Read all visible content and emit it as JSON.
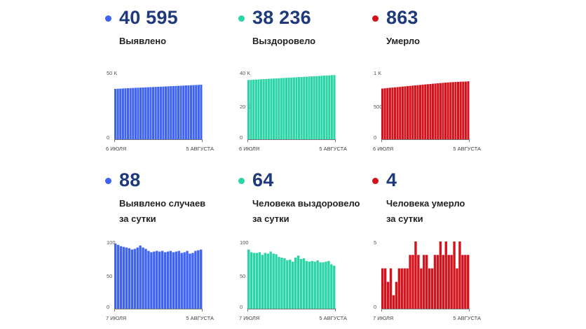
{
  "colors": {
    "blue": "#3f63f2",
    "green": "#2bd4a6",
    "red": "#d4121c",
    "value_text": "#1f3a7a"
  },
  "panels": [
    {
      "value": "40 595",
      "label_lines": [
        "Выявлено"
      ],
      "color": "blue"
    },
    {
      "value": "38 236",
      "label_lines": [
        "Выздоровело"
      ],
      "color": "green"
    },
    {
      "value": "863",
      "label_lines": [
        "Умерло"
      ],
      "color": "red"
    },
    {
      "value": "88",
      "label_lines": [
        "Выявлено случаев",
        "за сутки"
      ],
      "color": "blue"
    },
    {
      "value": "64",
      "label_lines": [
        "Человека выздоровело",
        "за сутки"
      ],
      "color": "green"
    },
    {
      "value": "4",
      "label_lines": [
        "Человека умерло",
        "за сутки"
      ],
      "color": "red"
    }
  ],
  "chart_data": [
    {
      "type": "bar",
      "ylim": [
        0,
        50000
      ],
      "yticks": [
        {
          "value": 0,
          "label": "0"
        },
        {
          "value": 50000,
          "label": "50 K"
        }
      ],
      "x_start_label": "6 ИЮЛЯ",
      "x_end_label": "5 АВГУСТА",
      "series": [
        {
          "values": [
            37510,
            37610,
            37710,
            37810,
            37900,
            38000,
            38100,
            38200,
            38290,
            38380,
            38460,
            38550,
            38640,
            38730,
            38810,
            38900,
            38990,
            39080,
            39170,
            39250,
            39340,
            39430,
            39510,
            39600,
            39690,
            39780,
            39870,
            39960,
            40060,
            40150,
            40240,
            40330,
            40420,
            40507,
            40595
          ]
        }
      ]
    },
    {
      "type": "bar",
      "ylim": [
        0,
        40000
      ],
      "yticks": [
        {
          "value": 0,
          "label": "0"
        },
        {
          "value": 20000,
          "label": "20 K"
        },
        {
          "value": 40000,
          "label": "40 K"
        }
      ],
      "x_start_label": "6 ИЮЛЯ",
      "x_end_label": "5 АВГУСТА",
      "series": [
        {
          "values": [
            35300,
            35390,
            35480,
            35570,
            35650,
            35740,
            35830,
            35910,
            36000,
            36080,
            36170,
            36250,
            36340,
            36420,
            36510,
            36590,
            36680,
            36760,
            36850,
            36930,
            37020,
            37100,
            37190,
            37270,
            37360,
            37440,
            37530,
            37610,
            37700,
            37790,
            37880,
            37970,
            38060,
            38172,
            38236
          ]
        }
      ]
    },
    {
      "type": "bar",
      "ylim": [
        0,
        1000
      ],
      "yticks": [
        {
          "value": 0,
          "label": "0"
        },
        {
          "value": 500,
          "label": "500"
        },
        {
          "value": 1000,
          "label": "1 K"
        }
      ],
      "x_start_label": "6 ИЮЛЯ",
      "x_end_label": "5 АВГУСТА",
      "series": [
        {
          "values": [
            755,
            759,
            763,
            767,
            770,
            774,
            777,
            780,
            785,
            788,
            792,
            795,
            799,
            802,
            805,
            809,
            813,
            817,
            820,
            823,
            827,
            830,
            834,
            837,
            840,
            843,
            846,
            849,
            851,
            853,
            855,
            857,
            858,
            859,
            863
          ]
        }
      ]
    },
    {
      "type": "bar",
      "ylim": [
        0,
        100
      ],
      "yticks": [
        {
          "value": 0,
          "label": "0"
        },
        {
          "value": 50,
          "label": "50"
        },
        {
          "value": 100,
          "label": "100"
        }
      ],
      "x_start_label": "7 ИЮЛЯ",
      "x_end_label": "5 АВГУСТА",
      "series": [
        {
          "values": [
            97,
            95,
            93,
            92,
            91,
            90,
            88,
            89,
            91,
            94,
            91,
            89,
            86,
            84,
            85,
            86,
            85,
            86,
            84,
            85,
            86,
            84,
            85,
            86,
            83,
            84,
            86,
            82,
            83,
            86,
            87,
            88
          ]
        }
      ]
    },
    {
      "type": "bar",
      "ylim": [
        0,
        100
      ],
      "yticks": [
        {
          "value": 0,
          "label": "0"
        },
        {
          "value": 50,
          "label": "50"
        },
        {
          "value": 100,
          "label": "100"
        }
      ],
      "x_start_label": "7 ИЮЛЯ",
      "x_end_label": "5 АВГУСТА",
      "series": [
        {
          "values": [
            88,
            84,
            83,
            83,
            84,
            80,
            83,
            82,
            85,
            82,
            81,
            77,
            76,
            75,
            72,
            73,
            70,
            76,
            79,
            74,
            75,
            71,
            70,
            71,
            70,
            72,
            69,
            69,
            70,
            71,
            66,
            64
          ]
        }
      ]
    },
    {
      "type": "bar",
      "ylim": [
        0,
        5
      ],
      "yticks": [
        {
          "value": 0,
          "label": "0"
        },
        {
          "value": 5,
          "label": "5"
        }
      ],
      "x_start_label": "7 ИЮЛЯ",
      "x_end_label": "5 АВГУСТА",
      "series": [
        {
          "values": [
            3,
            3,
            2,
            3,
            1,
            2,
            3,
            3,
            3,
            3,
            4,
            4,
            5,
            4,
            3,
            4,
            4,
            3,
            3,
            4,
            4,
            5,
            4,
            5,
            4,
            4,
            5,
            3,
            5,
            4,
            4,
            4
          ]
        }
      ]
    }
  ]
}
